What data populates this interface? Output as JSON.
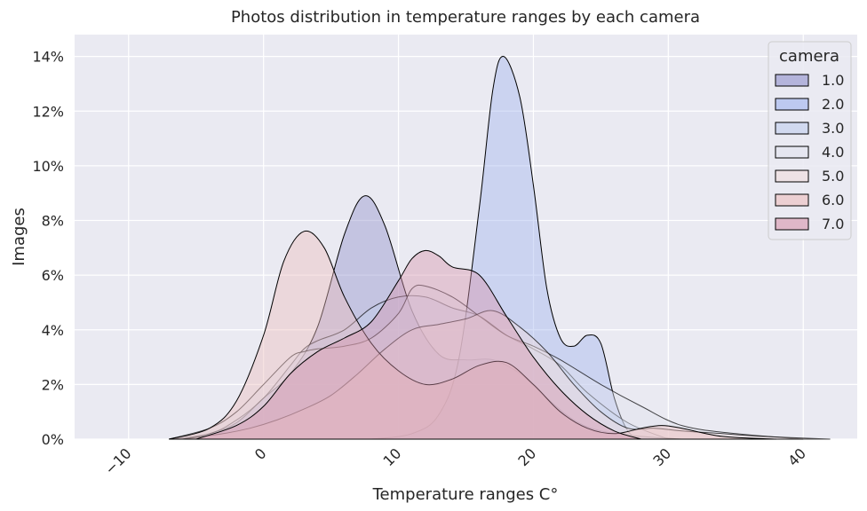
{
  "chart_data": {
    "type": "area",
    "title": "Photos distribution in temperature ranges by each camera",
    "xlabel": "Temperature ranges C°",
    "ylabel": "Images",
    "xlim": [
      -14,
      44
    ],
    "ylim": [
      0,
      0.148
    ],
    "x_ticks": [
      -10,
      0,
      10,
      20,
      30,
      40
    ],
    "x_tick_labels": [
      "−10",
      "0",
      "10",
      "20",
      "30",
      "40"
    ],
    "y_ticks": [
      0,
      0.02,
      0.04,
      0.06,
      0.08,
      0.1,
      0.12,
      0.14
    ],
    "y_tick_labels": [
      "0%",
      "2%",
      "4%",
      "6%",
      "8%",
      "10%",
      "12%",
      "14%"
    ],
    "grid": true,
    "legend": {
      "title": "camera",
      "placement": "top-right"
    },
    "series": [
      {
        "name": "1.0",
        "color": "#8f8fcb",
        "x": [
          -6,
          -4,
          -2,
          0,
          2,
          4,
          6,
          7.5,
          9,
          11,
          13,
          15,
          17,
          19,
          21,
          23,
          25,
          28,
          31
        ],
        "y": [
          0,
          0.002,
          0.006,
          0.015,
          0.024,
          0.041,
          0.075,
          0.089,
          0.078,
          0.047,
          0.031,
          0.029,
          0.029,
          0.024,
          0.015,
          0.007,
          0.003,
          0.001,
          0
        ]
      },
      {
        "name": "2.0",
        "color": "#9fb3ee",
        "x": [
          8,
          11,
          13,
          14.5,
          16,
          17,
          17.8,
          19,
          20,
          21,
          22,
          23,
          24,
          25,
          26,
          27,
          28
        ],
        "y": [
          0,
          0.002,
          0.009,
          0.03,
          0.085,
          0.128,
          0.14,
          0.125,
          0.093,
          0.055,
          0.037,
          0.034,
          0.038,
          0.035,
          0.015,
          0.003,
          0
        ]
      },
      {
        "name": "3.0",
        "color": "#c0cdec",
        "x": [
          -7,
          -4,
          -2,
          0,
          2,
          3,
          4,
          6,
          8,
          10,
          12,
          14,
          16,
          18,
          20,
          22,
          24,
          27,
          30
        ],
        "y": [
          0,
          0.002,
          0.007,
          0.015,
          0.027,
          0.033,
          0.036,
          0.04,
          0.048,
          0.052,
          0.052,
          0.048,
          0.045,
          0.038,
          0.033,
          0.027,
          0.017,
          0.006,
          0
        ]
      },
      {
        "name": "4.0",
        "color": "#e1e3ee",
        "x": [
          -7,
          -4,
          -2,
          0,
          2,
          3,
          4,
          6,
          8,
          10,
          11,
          12,
          14,
          16,
          18,
          20,
          22,
          25,
          28,
          31,
          35,
          40
        ],
        "y": [
          0,
          0.004,
          0.01,
          0.02,
          0.03,
          0.032,
          0.033,
          0.034,
          0.037,
          0.046,
          0.055,
          0.056,
          0.052,
          0.045,
          0.038,
          0.034,
          0.029,
          0.02,
          0.012,
          0.005,
          0.002,
          0
        ]
      },
      {
        "name": "5.0",
        "color": "#f0dcdc",
        "x": [
          -6,
          -3,
          -1,
          1,
          3,
          5,
          7,
          9,
          11,
          13,
          15,
          17,
          19,
          21,
          23,
          25,
          27,
          29,
          31,
          34,
          37,
          42
        ],
        "y": [
          0,
          0.002,
          0.004,
          0.007,
          0.011,
          0.016,
          0.024,
          0.033,
          0.04,
          0.042,
          0.044,
          0.047,
          0.041,
          0.032,
          0.02,
          0.01,
          0.004,
          0.004,
          0.003,
          0.002,
          0.001,
          0
        ]
      },
      {
        "name": "6.0",
        "color": "#ecbcbc",
        "x": [
          -7,
          -4,
          -2,
          0,
          1.5,
          3,
          4.5,
          6,
          8,
          10,
          12,
          14,
          16,
          18,
          20,
          22,
          24,
          26,
          28,
          29.5,
          31,
          34,
          38
        ],
        "y": [
          0,
          0.004,
          0.014,
          0.038,
          0.065,
          0.076,
          0.07,
          0.052,
          0.035,
          0.025,
          0.02,
          0.022,
          0.027,
          0.028,
          0.02,
          0.01,
          0.004,
          0.002,
          0.004,
          0.005,
          0.004,
          0.001,
          0
        ]
      },
      {
        "name": "7.0",
        "color": "#d794ab",
        "x": [
          -5,
          -2,
          0,
          2,
          4,
          6,
          8,
          10,
          11,
          12,
          13,
          14,
          16,
          18,
          20,
          22,
          24,
          26,
          28
        ],
        "y": [
          0,
          0.005,
          0.012,
          0.024,
          0.032,
          0.037,
          0.043,
          0.058,
          0.066,
          0.069,
          0.067,
          0.063,
          0.06,
          0.045,
          0.03,
          0.018,
          0.009,
          0.003,
          0
        ]
      }
    ]
  }
}
